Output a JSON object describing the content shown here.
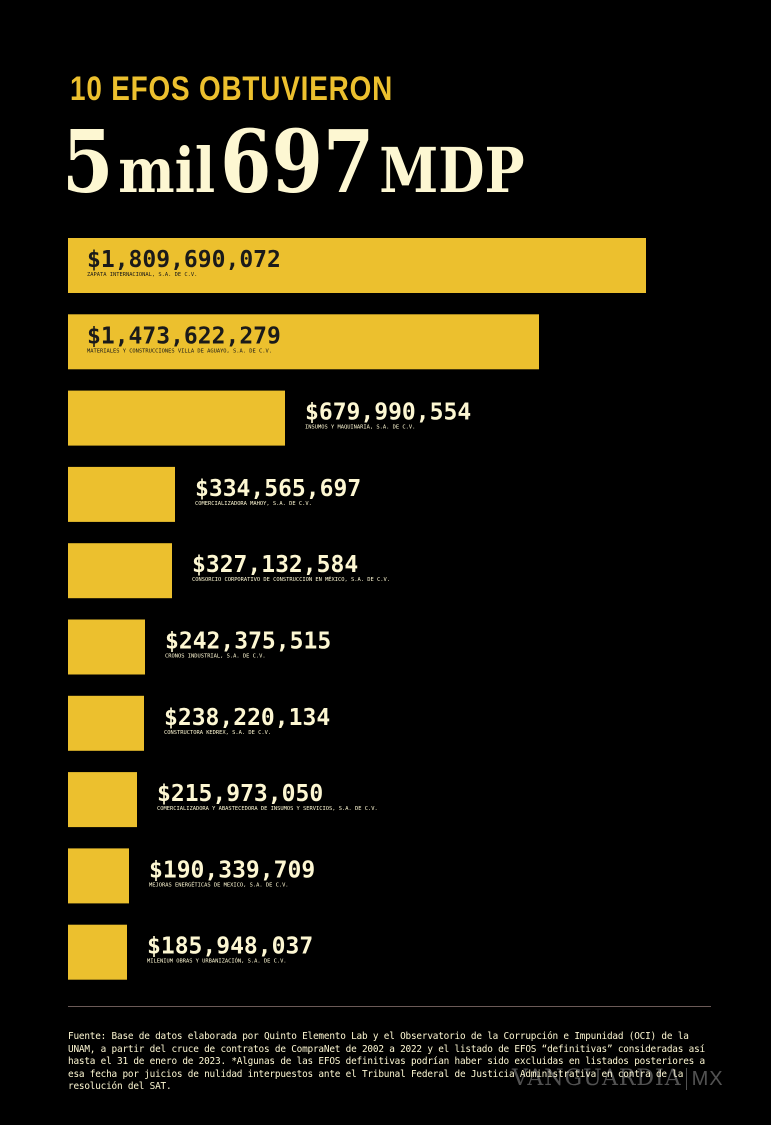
{
  "header": {
    "kicker": "10 EFOS OBTUVIERON",
    "headline": {
      "n1": "5",
      "mil": "mil",
      "n2": "697",
      "unit": "MDP"
    }
  },
  "chart_data": {
    "type": "bar",
    "orientation": "horizontal",
    "title": "10 EFOS OBTUVIERON 5 mil 697 MDP",
    "categories": [
      "ZAPATA INTERNACIONAL, S.A. DE C.V.",
      "MATERIALES Y CONSTRUCCIONES VILLA DE AGUAYO, S.A. DE C.V.",
      "INSUMOS Y MAQUINARIA, S.A. DE C.V.",
      "COMERCIALIZADORA MAHOY, S.A. DE C.V.",
      "CONSORCIO CORPORATIVO DE CONSTRUCCION EN MÉXICO, S.A. DE C.V.",
      "CRONOS INDUSTRIAL, S.A. DE C.V.",
      "CONSTRUCTORA KEDREX, S.A. DE C.V.",
      "COMERCIALIZADORA Y ABASTECEDORA DE INSUMOS Y SERVICIOS, S.A. DE C.V.",
      "MEJORAS ENERGÉTICAS DE MEXICO, S.A. DE C.V.",
      "MILENIUM OBRAS Y URBANIZACIÓN, S.A. DE C.V."
    ],
    "values": [
      1809690072,
      1473622279,
      679990554,
      334565697,
      327132584,
      242375515,
      238220134,
      215973050,
      190339709,
      185948037
    ],
    "value_labels": [
      "$1,809,690,072",
      "$1,473,622,279",
      "$679,990,554",
      "$334,565,697",
      "$327,132,584",
      "$242,375,515",
      "$238,220,134",
      "$215,973,050",
      "$190,339,709",
      "$185,948,037"
    ],
    "bar_color": "#ecc02e",
    "label_inside_threshold": 1000000000
  },
  "footer": {
    "source": "Fuente: Base de datos elaborada por Quinto Elemento Lab y el Observatorio de la Corrupción e Impunidad (OCI) de la UNAM, a partir del cruce de contratos de CompraNet de 2002 a 2022 y el listado de EFOS “definitivas” consideradas así hasta el 31 de enero de 2023. *Algunas de las EFOS definitivas podrían haber sido excluidas en listados posteriores a esa fecha por juicios de nulidad interpuestos ante el Tribunal Federal de Justicia Administrativa en contra de la resolución del SAT.",
    "watermark": "VANGUARDIA",
    "watermark_suffix": "MX"
  }
}
